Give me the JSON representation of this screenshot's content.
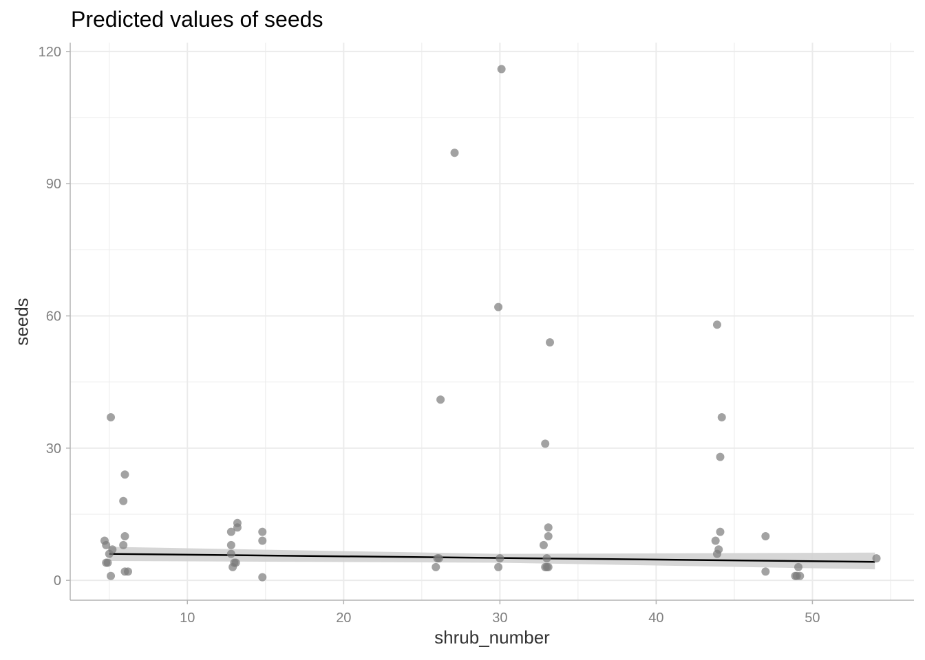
{
  "chart_data": {
    "type": "scatter",
    "title": "Predicted values of seeds",
    "xlabel": "shrub_number",
    "ylabel": "seeds",
    "xlim": [
      2.5,
      56.5
    ],
    "ylim": [
      -4.5,
      122
    ],
    "x_ticks": [
      10,
      20,
      30,
      40,
      50
    ],
    "y_ticks": [
      0,
      30,
      60,
      90,
      120
    ],
    "grid": true,
    "legend": "none",
    "colors": {
      "points": "#7a7a7a",
      "line": "#000000",
      "ribbon": "#d2d2d2",
      "grid": "#ebebeb",
      "axis": "#b3b3b3"
    },
    "points": [
      [
        4.7,
        9
      ],
      [
        4.8,
        8
      ],
      [
        4.8,
        4
      ],
      [
        4.9,
        4
      ],
      [
        5.0,
        6
      ],
      [
        5.1,
        37
      ],
      [
        5.1,
        1
      ],
      [
        5.2,
        7
      ],
      [
        5.9,
        18
      ],
      [
        5.9,
        8
      ],
      [
        6.0,
        24
      ],
      [
        6.0,
        10
      ],
      [
        6.0,
        2
      ],
      [
        6.2,
        2
      ],
      [
        12.8,
        11
      ],
      [
        12.8,
        8
      ],
      [
        12.8,
        6
      ],
      [
        12.9,
        3
      ],
      [
        13.0,
        4
      ],
      [
        13.1,
        4
      ],
      [
        13.2,
        13
      ],
      [
        13.2,
        12
      ],
      [
        14.8,
        11
      ],
      [
        14.8,
        9
      ],
      [
        14.8,
        0.7
      ],
      [
        25.9,
        3
      ],
      [
        26.0,
        5
      ],
      [
        26.1,
        5
      ],
      [
        26.2,
        41
      ],
      [
        27.1,
        97
      ],
      [
        29.9,
        62
      ],
      [
        29.9,
        3
      ],
      [
        30.0,
        5
      ],
      [
        30.1,
        116
      ],
      [
        32.8,
        8
      ],
      [
        32.9,
        31
      ],
      [
        32.9,
        3
      ],
      [
        33.0,
        3
      ],
      [
        33.0,
        5
      ],
      [
        33.1,
        10
      ],
      [
        33.1,
        12
      ],
      [
        33.1,
        3
      ],
      [
        33.2,
        54
      ],
      [
        43.8,
        9
      ],
      [
        43.9,
        6
      ],
      [
        43.9,
        58
      ],
      [
        44.0,
        7
      ],
      [
        44.1,
        11
      ],
      [
        44.1,
        28
      ],
      [
        44.2,
        37
      ],
      [
        47.0,
        10
      ],
      [
        47.0,
        2
      ],
      [
        48.9,
        1
      ],
      [
        49.0,
        1
      ],
      [
        49.1,
        3
      ],
      [
        49.2,
        1
      ],
      [
        54.1,
        5
      ]
    ],
    "fit_line": {
      "x": [
        5.0,
        54.0
      ],
      "y": [
        6.0,
        4.2
      ]
    },
    "confidence_band": {
      "x": [
        5.0,
        30.0,
        54.0
      ],
      "lower": [
        4.4,
        4.0,
        2.5
      ],
      "upper": [
        7.6,
        6.0,
        6.3
      ]
    }
  }
}
